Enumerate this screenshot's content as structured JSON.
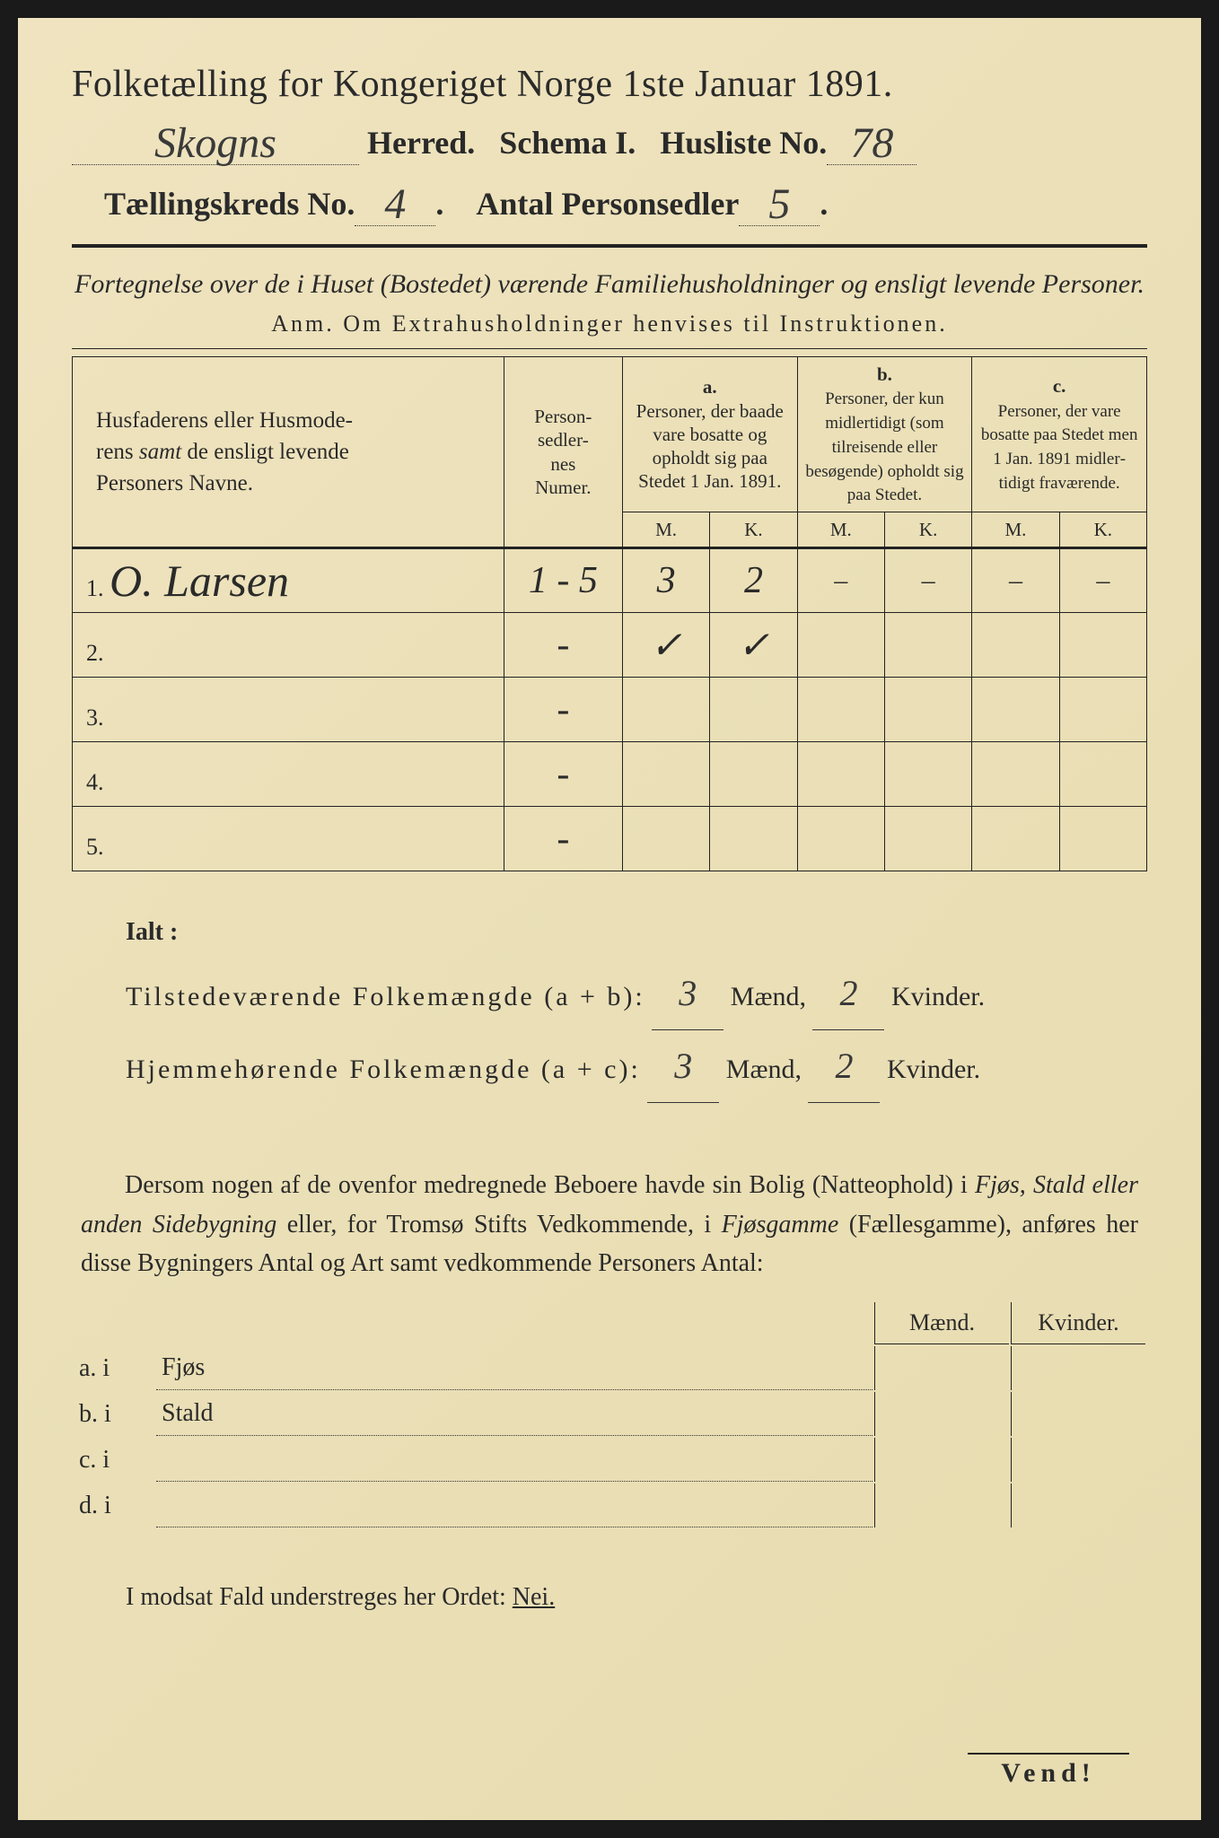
{
  "title": "Folketælling for Kongeriget Norge 1ste Januar 1891.",
  "header": {
    "herred_value": "Skogns",
    "herred_label": "Herred.",
    "schema_label": "Schema I.",
    "husliste_label": "Husliste No.",
    "husliste_value": "78",
    "kreds_label": "Tællingskreds No.",
    "kreds_value": "4",
    "personsedler_label": "Antal Personsedler",
    "personsedler_value": "5"
  },
  "subtitle": "Fortegnelse over de i Huset (Bostedet) værende Familiehusholdninger og ensligt levende Personer.",
  "anm": "Anm.  Om Extrahusholdninger henvises til Instruktionen.",
  "table": {
    "col1_header": "Husfaderens eller Husmode­rens samt de ensligt levende Personers Navne.",
    "col2_header": "Person­sedler­nes Numer.",
    "group_a_label": "a.",
    "group_a_text": "Personer, der baade vare bo­satte og opholdt sig paa Stedet 1 Jan. 1891.",
    "group_b_label": "b.",
    "group_b_text": "Personer, der kun midler­tidigt (som tilreisende eller besøgende) opholdt sig paa Stedet.",
    "group_c_label": "c.",
    "group_c_text": "Personer, der vare bosatte paa Stedet men 1 Jan. 1891 midler­tidigt fra­værende.",
    "m_label": "M.",
    "k_label": "K.",
    "rows": [
      {
        "num": "1.",
        "name": "O. Larsen",
        "sedler": "1 - 5",
        "a_m": "3",
        "a_k": "2",
        "b_m": "–",
        "b_k": "–",
        "c_m": "–",
        "c_k": "–"
      },
      {
        "num": "2.",
        "name": "",
        "sedler": "-",
        "a_m": "✓",
        "a_k": "✓",
        "b_m": "",
        "b_k": "",
        "c_m": "",
        "c_k": ""
      },
      {
        "num": "3.",
        "name": "",
        "sedler": "-",
        "a_m": "",
        "a_k": "",
        "b_m": "",
        "b_k": "",
        "c_m": "",
        "c_k": ""
      },
      {
        "num": "4.",
        "name": "",
        "sedler": "-",
        "a_m": "",
        "a_k": "",
        "b_m": "",
        "b_k": "",
        "c_m": "",
        "c_k": ""
      },
      {
        "num": "5.",
        "name": "",
        "sedler": "-",
        "a_m": "",
        "a_k": "",
        "b_m": "",
        "b_k": "",
        "c_m": "",
        "c_k": ""
      }
    ]
  },
  "totals": {
    "ialt_label": "Ialt :",
    "line1_label": "Tilstedeværende Folkemængde (a + b):",
    "line1_m": "3",
    "line1_k": "2",
    "line2_label": "Hjemmehørende Folkemængde (a + c):",
    "line2_m": "3",
    "line2_k": "2",
    "maend": "Mænd,",
    "kvinder": "Kvinder."
  },
  "paragraph": "Dersom nogen af de ovenfor medregnede Beboere havde sin Bolig (Natte­ophold) i Fjøs, Stald eller anden Sidebygning eller, for Tromsø Stifts Ved­kommende, i Fjøsgamme (Fællesgamme), anføres her disse Bygningers Antal og Art samt vedkommende Personers Antal:",
  "side": {
    "maend": "Mænd.",
    "kvinder": "Kvinder.",
    "rows": [
      {
        "label": "a.  i",
        "text": "Fjøs"
      },
      {
        "label": "b.  i",
        "text": "Stald"
      },
      {
        "label": "c.  i",
        "text": ""
      },
      {
        "label": "d.  i",
        "text": ""
      }
    ]
  },
  "footer": "I modsat Fald understreges her Ordet:",
  "footer_word": "Nei.",
  "vend": "Vend!",
  "colors": {
    "paper": "#ebe0b8",
    "ink": "#2a2a2a",
    "border": "#1a1a1a",
    "handwriting": "#3a3a3a"
  },
  "typography": {
    "title_pt": 42,
    "body_pt": 28,
    "table_pt": 24,
    "handwritten_pt": 48
  }
}
